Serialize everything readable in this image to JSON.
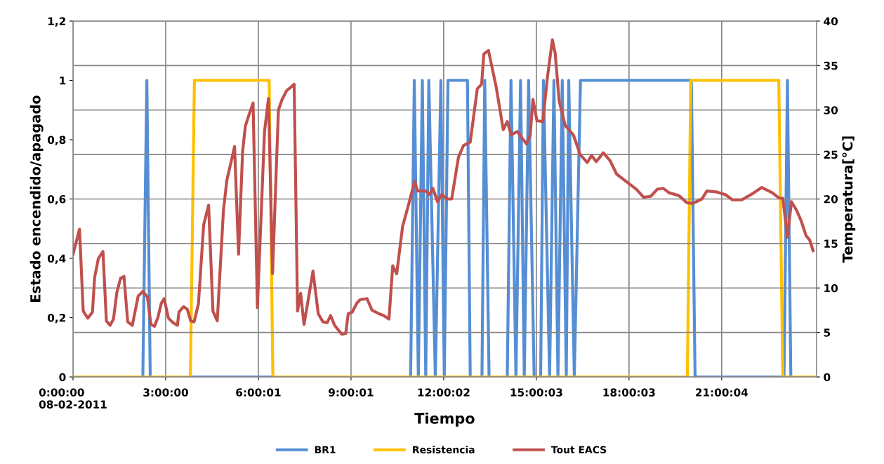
{
  "chart_data": {
    "type": "line",
    "xlabel": "Tiempo",
    "ylabel": "Estado encendido/apagado",
    "y2label": "Temperatura[°C]",
    "xlim": [
      0,
      24.07
    ],
    "xticks": [
      {
        "value": 0,
        "label": "0:00:00\n08-02-2011"
      },
      {
        "value": 3,
        "label": "3:00:00"
      },
      {
        "value": 6.000278,
        "label": "6:00:01"
      },
      {
        "value": 9.000278,
        "label": "9:00:01"
      },
      {
        "value": 12.000556,
        "label": "12:00:02"
      },
      {
        "value": 15.000833,
        "label": "15:00:03"
      },
      {
        "value": 18.000833,
        "label": "18:00:03"
      },
      {
        "value": 21.001111,
        "label": "21:00:04"
      }
    ],
    "ylim": [
      0,
      1.2
    ],
    "yticks": [
      {
        "value": 0,
        "label": "0"
      },
      {
        "value": 0.2,
        "label": "0,2"
      },
      {
        "value": 0.4,
        "label": "0,4"
      },
      {
        "value": 0.6,
        "label": "0,6"
      },
      {
        "value": 0.8,
        "label": "0,8"
      },
      {
        "value": 1,
        "label": "1"
      },
      {
        "value": 1.2,
        "label": "1,2"
      }
    ],
    "y2lim": [
      0,
      40
    ],
    "y2ticks": [
      0,
      5,
      10,
      15,
      20,
      25,
      30,
      35,
      40
    ],
    "grid": true,
    "legend": "bottom",
    "marker": "none",
    "line_style": "solid",
    "series": [
      {
        "name": "BR1",
        "color": "#558ed5",
        "x": [
          0,
          2.26,
          2.39,
          2.5,
          10.93,
          11.05,
          11.18,
          11.31,
          11.42,
          11.52,
          11.73,
          11.91,
          12.02,
          12.14,
          12.77,
          12.86,
          13.24,
          13.33,
          13.47,
          14.06,
          14.18,
          14.34,
          14.49,
          14.61,
          14.75,
          14.93,
          15.14,
          15.23,
          15.43,
          15.57,
          15.7,
          15.84,
          15.97,
          16.05,
          16.23,
          16.43,
          20.02,
          20.14,
          23.02,
          23.13,
          23.24,
          24.07
        ],
        "values": [
          0,
          0,
          1,
          0,
          0,
          1,
          0,
          1,
          0,
          1,
          0,
          1,
          0,
          1,
          1,
          0,
          0,
          1,
          0,
          0,
          1,
          0,
          1,
          0,
          1,
          0,
          0,
          1,
          0,
          1,
          0,
          1,
          0,
          1,
          0,
          1,
          1,
          0,
          0,
          1,
          0,
          0
        ]
      },
      {
        "name": "Resistencia",
        "color": "#ffc000",
        "x": [
          0,
          3.8,
          3.93,
          6.35,
          6.47,
          19.89,
          20.0,
          22.85,
          22.98,
          24.07
        ],
        "values": [
          0,
          0,
          1,
          1,
          0,
          0,
          1,
          1,
          0,
          0
        ]
      },
      {
        "name": "Tout EACS",
        "color": "#c0504d",
        "axis": "y2",
        "x": [
          0,
          0.21,
          0.33,
          0.48,
          0.63,
          0.7,
          0.82,
          0.97,
          1.08,
          1.2,
          1.31,
          1.42,
          1.54,
          1.65,
          1.77,
          1.92,
          2.11,
          2.26,
          2.41,
          2.52,
          2.64,
          2.75,
          2.86,
          2.95,
          3.09,
          3.24,
          3.38,
          3.43,
          3.58,
          3.7,
          3.81,
          3.92,
          4.06,
          4.23,
          4.39,
          4.53,
          4.67,
          4.87,
          4.98,
          5.14,
          5.23,
          5.36,
          5.49,
          5.58,
          5.7,
          5.83,
          5.97,
          6.2,
          6.33,
          6.46,
          6.65,
          6.77,
          6.92,
          7.03,
          7.16,
          7.27,
          7.37,
          7.48,
          7.64,
          7.77,
          7.94,
          8.09,
          8.23,
          8.34,
          8.47,
          8.7,
          8.83,
          8.91,
          9.04,
          9.19,
          9.3,
          9.52,
          9.68,
          9.91,
          10.06,
          10.23,
          10.35,
          10.48,
          10.67,
          10.89,
          11.06,
          11.16,
          11.42,
          11.54,
          11.65,
          11.8,
          11.94,
          12.11,
          12.26,
          12.48,
          12.64,
          12.86,
          13.09,
          13.23,
          13.3,
          13.45,
          13.7,
          13.93,
          14.06,
          14.19,
          14.38,
          14.68,
          14.8,
          14.89,
          15.02,
          15.21,
          15.36,
          15.52,
          15.61,
          15.74,
          15.93,
          16.2,
          16.42,
          16.65,
          16.79,
          16.94,
          17.17,
          17.39,
          17.6,
          17.86,
          18.24,
          18.47,
          18.7,
          18.92,
          19.11,
          19.3,
          19.61,
          19.87,
          20.06,
          20.36,
          20.52,
          20.82,
          21.12,
          21.35,
          21.65,
          21.95,
          22.3,
          22.64,
          22.86,
          22.98,
          23.13,
          23.26,
          23.43,
          23.58,
          23.73,
          23.85,
          23.96
        ],
        "values": [
          13.8,
          16.6,
          7.4,
          6.6,
          7.3,
          11.2,
          13.3,
          14.1,
          6.3,
          5.8,
          6.5,
          9.5,
          11.1,
          11.3,
          6.2,
          5.8,
          9.1,
          9.6,
          9.0,
          5.9,
          5.7,
          6.7,
          8.3,
          8.8,
          6.6,
          6.1,
          5.8,
          7.3,
          7.9,
          7.6,
          6.3,
          6.2,
          8.2,
          17.1,
          19.3,
          7.4,
          6.3,
          18.7,
          22.1,
          24.5,
          25.9,
          13.8,
          25.3,
          28.2,
          29.5,
          30.8,
          7.8,
          27.6,
          31.3,
          11.6,
          30.0,
          31.2,
          32.2,
          32.5,
          32.9,
          7.4,
          9.4,
          5.9,
          9.2,
          11.9,
          7.1,
          6.2,
          6.1,
          6.9,
          5.8,
          4.8,
          4.9,
          7.1,
          7.3,
          8.3,
          8.7,
          8.8,
          7.5,
          7.1,
          6.9,
          6.5,
          12.5,
          11.6,
          16.9,
          19.7,
          22.0,
          20.9,
          20.9,
          20.5,
          21.2,
          19.7,
          20.5,
          20.0,
          20.0,
          24.7,
          26.0,
          26.4,
          32.4,
          32.9,
          36.3,
          36.7,
          32.6,
          27.8,
          28.7,
          27.2,
          27.6,
          26.2,
          27.1,
          31.2,
          28.8,
          28.7,
          33.7,
          37.9,
          36.4,
          31.0,
          28.3,
          27.2,
          25.0,
          24.1,
          24.9,
          24.2,
          25.2,
          24.3,
          22.8,
          22.1,
          21.1,
          20.2,
          20.3,
          21.1,
          21.2,
          20.7,
          20.4,
          19.6,
          19.5,
          20.0,
          20.9,
          20.8,
          20.5,
          19.9,
          19.9,
          20.5,
          21.3,
          20.7,
          20.1,
          20.1,
          15.7,
          19.7,
          18.7,
          17.5,
          15.9,
          15.4,
          14.2
        ]
      }
    ]
  }
}
